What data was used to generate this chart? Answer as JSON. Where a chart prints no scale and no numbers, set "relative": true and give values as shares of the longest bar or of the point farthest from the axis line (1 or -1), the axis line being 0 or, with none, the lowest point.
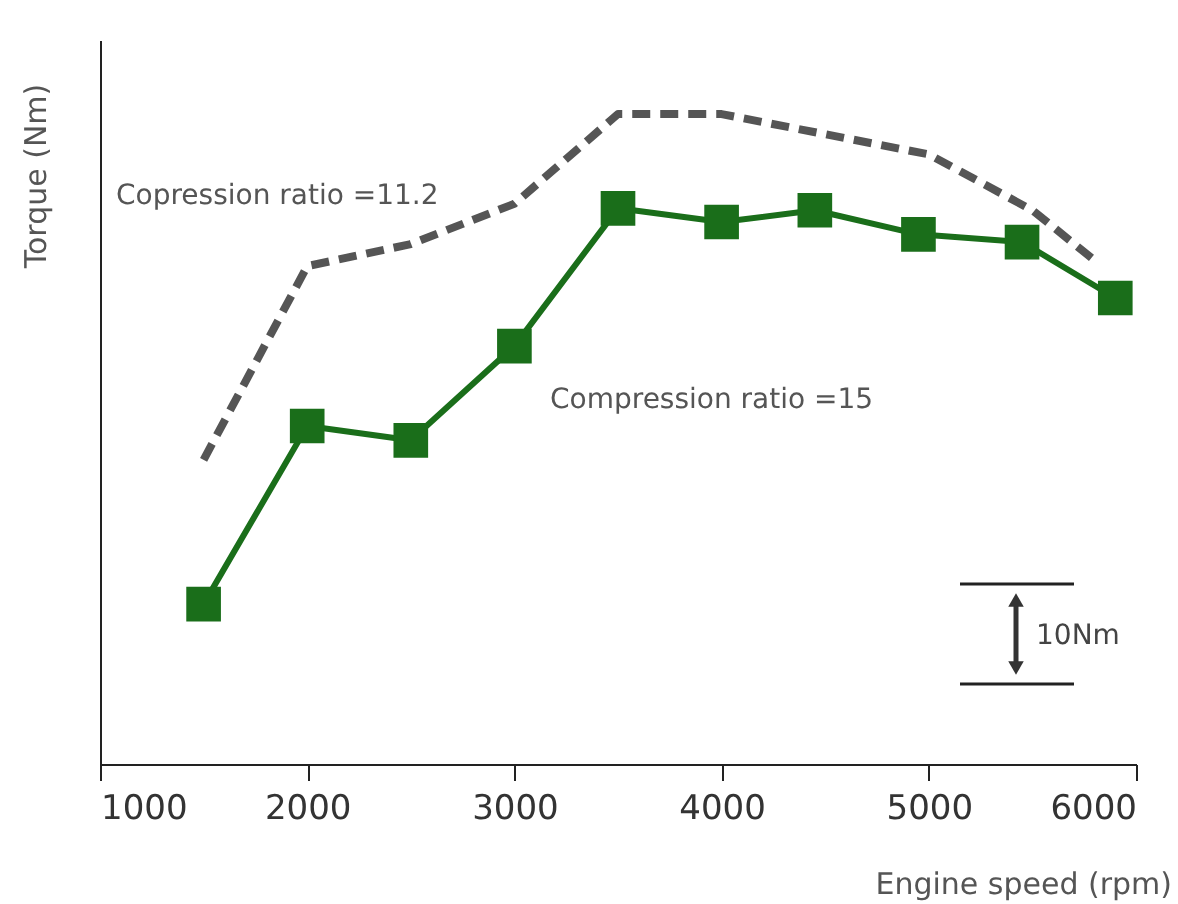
{
  "chart_data": {
    "type": "line",
    "relative": true,
    "xlabel": "Engine speed (rpm)",
    "ylabel": "Torque (Nm)",
    "xlim": [
      1000,
      6000
    ],
    "xticks": [
      1000,
      2000,
      3000,
      4000,
      5000,
      6000
    ],
    "grid": false,
    "legend": false,
    "series": [
      {
        "name": "Copression ratio =11.2",
        "color": "#555555",
        "marker": "none",
        "line_style": "dashed",
        "x": [
          1500,
          2000,
          2500,
          3000,
          3500,
          4000,
          4500,
          5000,
          5500,
          5800
        ],
        "values": [
          0.468,
          0.766,
          0.8,
          0.862,
          1,
          1,
          0.969,
          0.938,
          0.852,
          0.775
        ]
      },
      {
        "name": "Compression ratio =15",
        "color": "#1a6e1a",
        "marker": "square",
        "line_style": "solid",
        "x": [
          1500,
          2000,
          2500,
          3000,
          3500,
          4000,
          4450,
          4950,
          5450,
          5900
        ],
        "values": [
          0.246,
          0.52,
          0.498,
          0.643,
          0.855,
          0.834,
          0.852,
          0.815,
          0.803,
          0.717
        ]
      }
    ],
    "annotations": [
      "10Nm"
    ]
  }
}
